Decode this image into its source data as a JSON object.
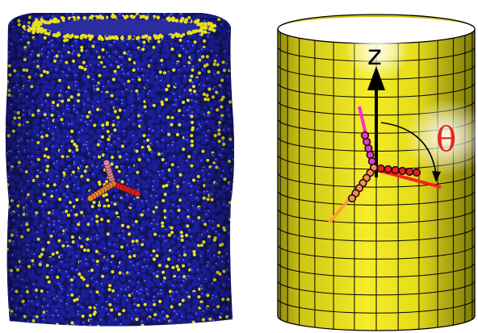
{
  "figure": {
    "left_panel": {
      "depiction": "particle-membrane-tube",
      "colors": {
        "membrane_particle": "#1c1f9a",
        "membrane_particle_highlight": "#6f74ff",
        "exposed_particle": "#e6df1e",
        "inclusion_arm_pink": "#d98aa0",
        "inclusion_arm_red": "#d91e1e",
        "inclusion_arm_orange": "#e58a2a"
      }
    },
    "right_panel": {
      "depiction": "meshed-cylinder-with-tripod",
      "labels": {
        "axis": "z",
        "angle": "θ"
      },
      "colors": {
        "cylinder_face": "#e9e117",
        "mesh_line": "#000000",
        "axis_arrow": "#000000",
        "angle_label": "#e8241a",
        "arm_magenta": "#ff2bd0",
        "arm_red": "#ff1f1f",
        "arm_orange": "#ff9a3c",
        "bead_magenta": "#d83fd8",
        "bead_red": "#e52222",
        "bead_orange": "#f19050",
        "bead_outline": "#2a0a0a"
      }
    }
  }
}
